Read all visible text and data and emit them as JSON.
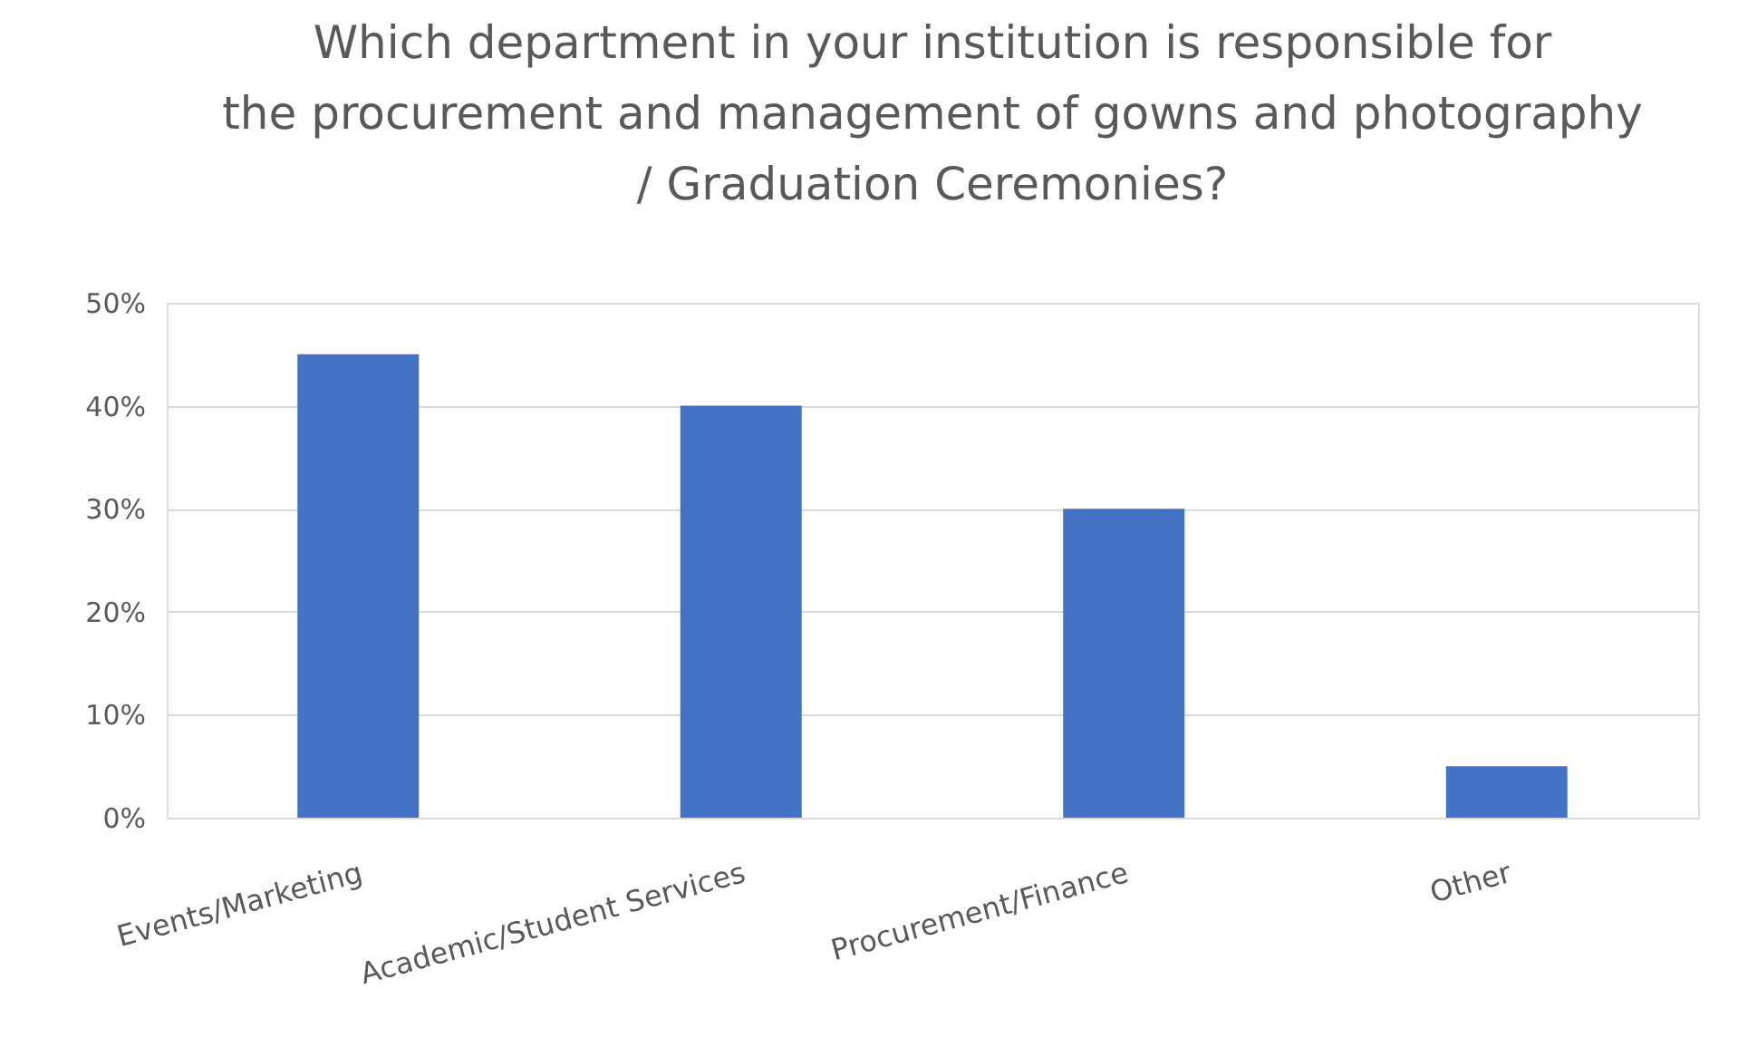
{
  "chart_data": {
    "type": "bar",
    "title": "Which department in your institution is responsible for the procurement and management of gowns and photography / Graduation Ceremonies?",
    "categories": [
      "Events/Marketing",
      "Academic/Student Services",
      "Procurement/Finance",
      "Other"
    ],
    "values": [
      45,
      40,
      30,
      5
    ],
    "color": "#4472c4",
    "ylim": [
      0,
      50
    ],
    "yticks": [
      {
        "value": 0,
        "label": "0%"
      },
      {
        "value": 10,
        "label": "10%"
      },
      {
        "value": 20,
        "label": "20%"
      },
      {
        "value": 30,
        "label": "30%"
      },
      {
        "value": 40,
        "label": "40%"
      },
      {
        "value": 50,
        "label": "50%"
      }
    ],
    "grid": "y"
  }
}
